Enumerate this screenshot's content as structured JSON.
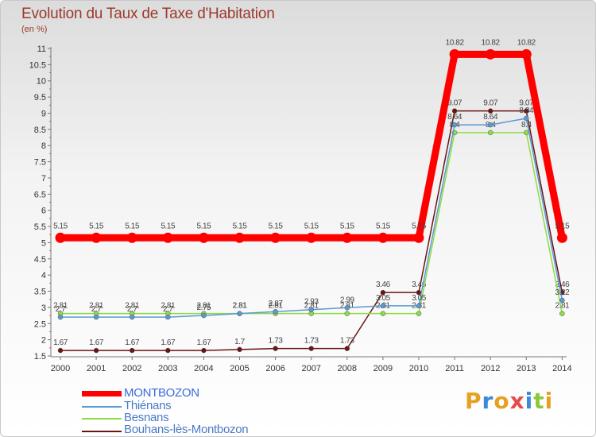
{
  "title": "Evolution du Taux de Taxe d'Habitation",
  "unit": "(en %)",
  "brand": "Proxiti",
  "chart_data": {
    "type": "line",
    "categories": [
      "2000",
      "2001",
      "2002",
      "2003",
      "2004",
      "2005",
      "2006",
      "2007",
      "2008",
      "2009",
      "2010",
      "2011",
      "2012",
      "2013",
      "2014"
    ],
    "ylim": [
      1.5,
      11
    ],
    "yticks": [
      "1.5",
      "2",
      "2.5",
      "3",
      "3.5",
      "4",
      "4.5",
      "5",
      "5.5",
      "6",
      "6.5",
      "7",
      "7.5",
      "8",
      "8.5",
      "9",
      "9.5",
      "10",
      "10.5",
      "11"
    ],
    "series": [
      {
        "name": "Bouhans-lès-Montbozon",
        "color": "#6b1414",
        "values": [
          1.67,
          1.67,
          1.67,
          1.67,
          1.67,
          1.7,
          1.73,
          1.73,
          1.73,
          3.46,
          3.46,
          9.07,
          9.07,
          9.07,
          3.46
        ],
        "labels": [
          "1.67",
          "1.67",
          "1.67",
          "1.67",
          "1.67",
          "1.7",
          "1.73",
          "1.73",
          "1.73",
          "3.46",
          "3.46",
          "9.07",
          "9.07",
          "9.07",
          "3.46"
        ]
      },
      {
        "name": "Besnans",
        "color": "#8cdc46",
        "values": [
          2.81,
          2.81,
          2.81,
          2.81,
          2.81,
          2.81,
          2.81,
          2.81,
          2.81,
          2.81,
          2.81,
          8.4,
          8.4,
          8.4,
          2.81
        ],
        "labels": [
          "2.81",
          "2.81",
          "2.81",
          "2.81",
          "2.81",
          "2.81",
          "2.81",
          "2.81",
          "2.81",
          "2.81",
          "2.81",
          "8.4",
          "8.4",
          "8.4",
          "2.81"
        ]
      },
      {
        "name": "Thiénans",
        "color": "#5a9ad2",
        "values": [
          2.7,
          2.7,
          2.7,
          2.7,
          2.75,
          2.81,
          2.87,
          2.93,
          2.99,
          3.05,
          3.05,
          8.64,
          8.64,
          8.84,
          3.22
        ],
        "labels": [
          "2.7",
          "2.7",
          "2.7",
          "2.7",
          "2.75",
          "2.81",
          "2.87",
          "2.93",
          "2.99",
          "3.05",
          "3.05",
          "8.64",
          "8.64",
          "8.84",
          "3.22"
        ]
      },
      {
        "name": "MONTBOZON",
        "color": "#ff0000",
        "values": [
          5.15,
          5.15,
          5.15,
          5.15,
          5.15,
          5.15,
          5.15,
          5.15,
          5.15,
          5.15,
          5.15,
          10.82,
          10.82,
          10.82,
          5.15
        ],
        "labels": [
          "5.15",
          "5.15",
          "5.15",
          "5.15",
          "5.15",
          "5.15",
          "5.15",
          "5.15",
          "5.15",
          "5.15",
          "5.15",
          "10.82",
          "10.82",
          "10.82",
          "5.15"
        ]
      }
    ]
  },
  "legend": [
    {
      "name": "MONTBOZON",
      "color": "#ff0000"
    },
    {
      "name": "Thiénans",
      "color": "#5a9ad2"
    },
    {
      "name": "Besnans",
      "color": "#8cdc46"
    },
    {
      "name": "Bouhans-lès-Montbozon",
      "color": "#6b1414"
    }
  ],
  "brand_colors": [
    "#e8a020",
    "#3a8ad8",
    "#e8a020",
    "#e84a4a",
    "#3a8ad8",
    "#8cc83c",
    "#e8a020"
  ]
}
